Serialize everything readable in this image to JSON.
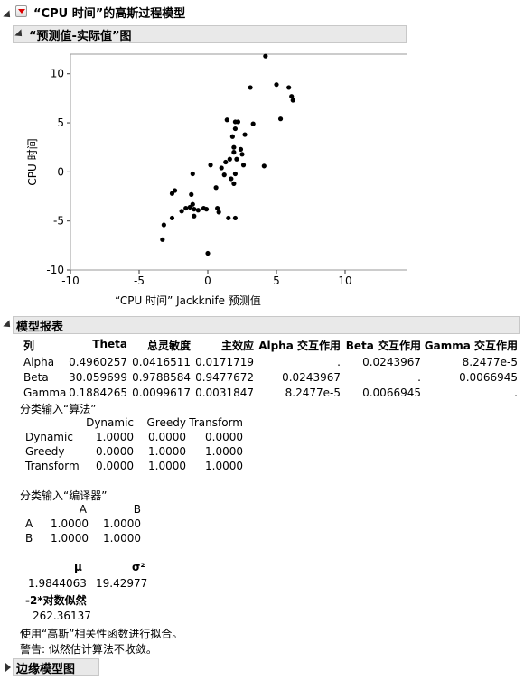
{
  "title": "“CPU 时间”的高斯过程模型",
  "plot_section": {
    "title": "“预测值-实际值”图"
  },
  "chart_data": {
    "type": "scatter",
    "xlabel": "“CPU 时间” Jackknife 预测值",
    "ylabel": "CPU 时间",
    "xlim": [
      -10,
      15
    ],
    "ylim": [
      -10,
      12
    ],
    "xticks": [
      "-10",
      "-5",
      "0",
      "5",
      "10"
    ],
    "yticks": [
      "10",
      "5",
      "0",
      "-5",
      "-10"
    ],
    "points": [
      [
        -3.3,
        -6.9
      ],
      [
        -3.2,
        -5.4
      ],
      [
        -2.6,
        -4.7
      ],
      [
        -2.6,
        -2.2
      ],
      [
        -2.4,
        -1.9
      ],
      [
        -1.9,
        -4.0
      ],
      [
        -1.6,
        -3.7
      ],
      [
        -1.3,
        -3.6
      ],
      [
        -1.1,
        -3.3
      ],
      [
        -1.2,
        -2.3
      ],
      [
        -1.1,
        -0.2
      ],
      [
        -1.0,
        -3.8
      ],
      [
        -1.0,
        -4.5
      ],
      [
        -0.7,
        -3.9
      ],
      [
        -0.3,
        -3.7
      ],
      [
        -0.1,
        -3.8
      ],
      [
        0.0,
        -8.3
      ],
      [
        0.2,
        0.7
      ],
      [
        0.6,
        -1.6
      ],
      [
        0.7,
        -3.7
      ],
      [
        0.8,
        -4.1
      ],
      [
        1.0,
        0.4
      ],
      [
        1.2,
        -0.3
      ],
      [
        1.3,
        1.0
      ],
      [
        1.4,
        5.3
      ],
      [
        1.5,
        -4.7
      ],
      [
        1.6,
        1.3
      ],
      [
        1.7,
        -0.7
      ],
      [
        1.8,
        3.6
      ],
      [
        1.9,
        2.0
      ],
      [
        1.9,
        -1.2
      ],
      [
        1.9,
        2.5
      ],
      [
        2.0,
        -0.2
      ],
      [
        2.0,
        5.1
      ],
      [
        2.0,
        -4.7
      ],
      [
        2.0,
        4.4
      ],
      [
        2.1,
        1.3
      ],
      [
        2.2,
        5.1
      ],
      [
        2.4,
        2.3
      ],
      [
        2.5,
        1.8
      ],
      [
        2.6,
        0.7
      ],
      [
        2.7,
        3.8
      ],
      [
        3.1,
        8.6
      ],
      [
        3.3,
        4.9
      ],
      [
        4.1,
        0.6
      ],
      [
        4.2,
        11.8
      ],
      [
        5.0,
        8.9
      ],
      [
        5.3,
        5.4
      ],
      [
        5.9,
        8.6
      ],
      [
        6.1,
        7.7
      ],
      [
        6.2,
        7.3
      ]
    ]
  },
  "report": {
    "title": "模型报表",
    "headers": [
      "列",
      "Theta",
      "总灵敏度",
      "主效应",
      "Alpha 交互作用",
      "Beta 交互作用",
      "Gamma 交互作用"
    ],
    "rows": [
      [
        "Alpha",
        "0.4960257",
        "0.0416511",
        "0.0171719",
        ".",
        "0.0243967",
        "8.2477e-5"
      ],
      [
        "Beta",
        "30.059699",
        "0.9788584",
        "0.9477672",
        "0.0243967",
        ".",
        "0.0066945"
      ],
      [
        "Gamma",
        "0.1884265",
        "0.0099617",
        "0.0031847",
        "8.2477e-5",
        "0.0066945",
        "."
      ]
    ],
    "cat1": {
      "title": "分类输入“算法”",
      "cols": [
        "Dynamic",
        "Greedy",
        "Transform"
      ],
      "rows": [
        [
          "Dynamic",
          "1.0000",
          "0.0000",
          "0.0000"
        ],
        [
          "Greedy",
          "0.0000",
          "1.0000",
          "1.0000"
        ],
        [
          "Transform",
          "0.0000",
          "1.0000",
          "1.0000"
        ]
      ]
    },
    "cat2": {
      "title": "分类输入“编译器”",
      "cols": [
        "A",
        "B"
      ],
      "rows": [
        [
          "A",
          "1.0000",
          "1.0000"
        ],
        [
          "B",
          "1.0000",
          "1.0000"
        ]
      ]
    },
    "mu_label": "μ",
    "sigma_label": "σ²",
    "mu_value": "1.9844063",
    "sigma_value": "19.42977",
    "loglik_label": "-2*对数似然",
    "loglik_value": "262.36137",
    "note1": "使用“高斯”相关性函数进行拟合。",
    "note2": "警告: 似然估计算法不收敛。"
  },
  "margin_section": {
    "title": "边缘模型图"
  }
}
